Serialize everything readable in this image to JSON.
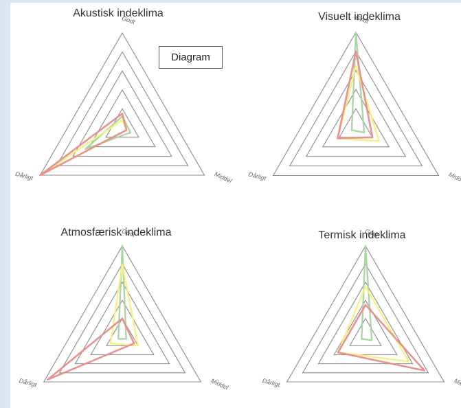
{
  "badge": {
    "label": "Diagram"
  },
  "axes": [
    "Godt",
    "Middel",
    "Dårligt"
  ],
  "colors": {
    "green": "#a9d3a3",
    "yellow": "#f6f07e",
    "red": "#e98b8b",
    "grid": "#8c8c8c"
  },
  "chart_data": [
    {
      "type": "radar",
      "title": "Akustisk indeklima",
      "levels": 5,
      "axes": [
        "Godt",
        "Middel",
        "Dårligt"
      ],
      "series": [
        {
          "color": "green",
          "values": [
            0.12,
            0.1,
            0.45
          ]
        },
        {
          "color": "yellow",
          "values": [
            0.08,
            0.05,
            1.0
          ]
        },
        {
          "color": "red",
          "values": [
            0.15,
            0.05,
            1.0
          ]
        }
      ]
    },
    {
      "type": "radar",
      "title": "Visuelt indeklima",
      "levels": 5,
      "axes": [
        "Godt",
        "Middel",
        "Dårligt"
      ],
      "series": [
        {
          "color": "green",
          "values": [
            1.0,
            0.1,
            0.05
          ]
        },
        {
          "color": "yellow",
          "values": [
            0.65,
            0.28,
            0.22
          ]
        },
        {
          "color": "red",
          "values": [
            0.8,
            0.2,
            0.22
          ]
        }
      ]
    },
    {
      "type": "radar",
      "title": "Atmosfærisk indeklima",
      "levels": 5,
      "axes": [
        "Godt",
        "Middel",
        "Dårligt"
      ],
      "series": [
        {
          "color": "green",
          "values": [
            1.0,
            0.05,
            0.05
          ]
        },
        {
          "color": "yellow",
          "values": [
            0.8,
            0.2,
            0.15
          ]
        },
        {
          "color": "red",
          "values": [
            0.2,
            0.15,
            0.95
          ]
        }
      ]
    },
    {
      "type": "radar",
      "title": "Termisk indeklima",
      "levels": 5,
      "axes": [
        "Godt",
        "Middel",
        "Dårligt"
      ],
      "series": [
        {
          "color": "green",
          "values": [
            1.0,
            0.08,
            0.05
          ]
        },
        {
          "color": "yellow",
          "values": [
            0.55,
            0.55,
            0.35
          ]
        },
        {
          "color": "red",
          "values": [
            0.35,
            0.75,
            0.35
          ]
        }
      ]
    }
  ]
}
